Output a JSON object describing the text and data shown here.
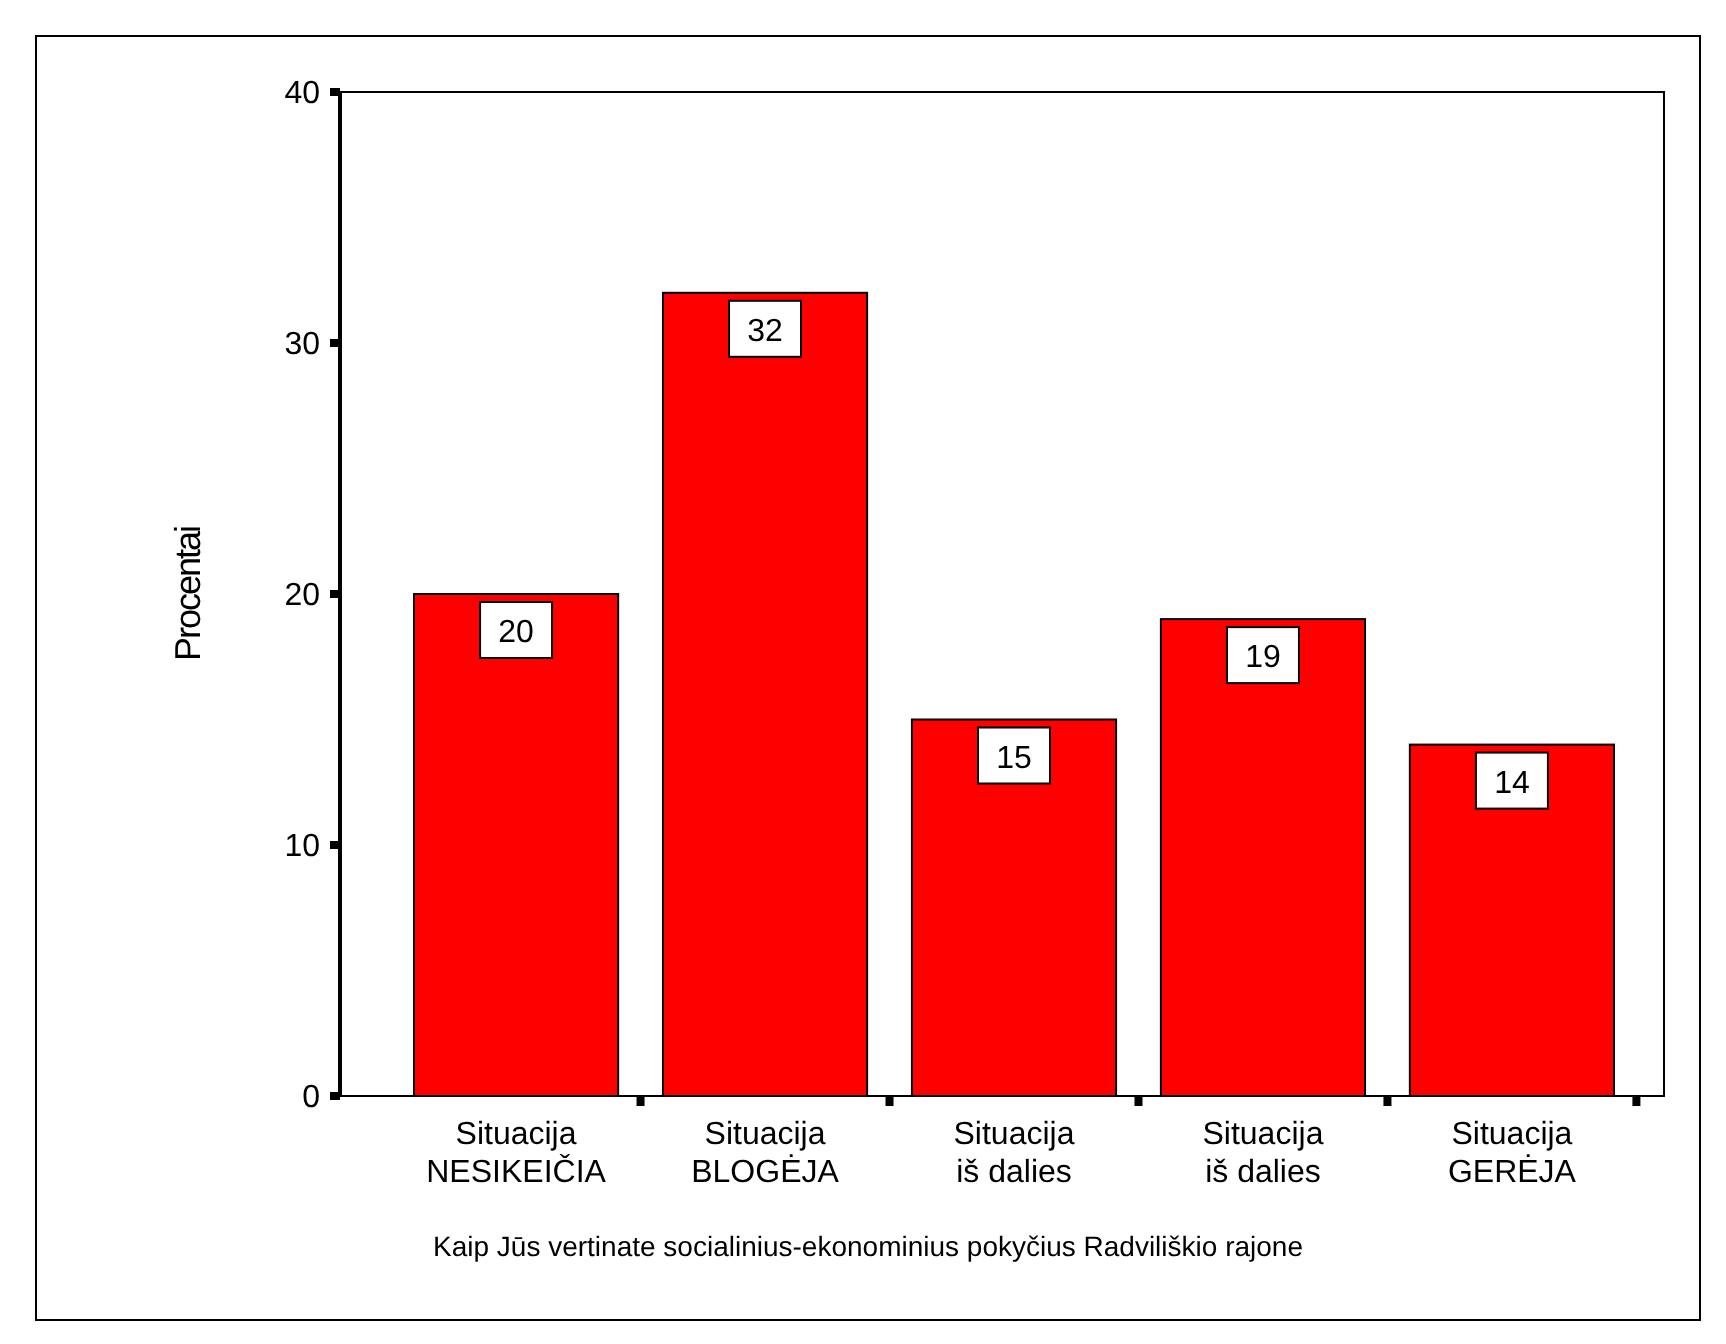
{
  "chart_data": {
    "type": "bar",
    "ylabel": "Procentai",
    "xlabel": "Kaip Jūs vertinate socialinius-ekonominius pokyčius Radviliškio rajone",
    "categories": [
      "Situacija NESIKEIČIA",
      "Situacija BLOGĖJA",
      "Situacija iš dalies",
      "Situacija iš dalies",
      "Situacija GERĖJA"
    ],
    "values": [
      20,
      32,
      15,
      19,
      14
    ],
    "color": "#ff0000",
    "ylim": [
      0,
      40
    ],
    "yticks": [
      0,
      10,
      20,
      30,
      40
    ],
    "data_labels": true,
    "grid": false
  }
}
